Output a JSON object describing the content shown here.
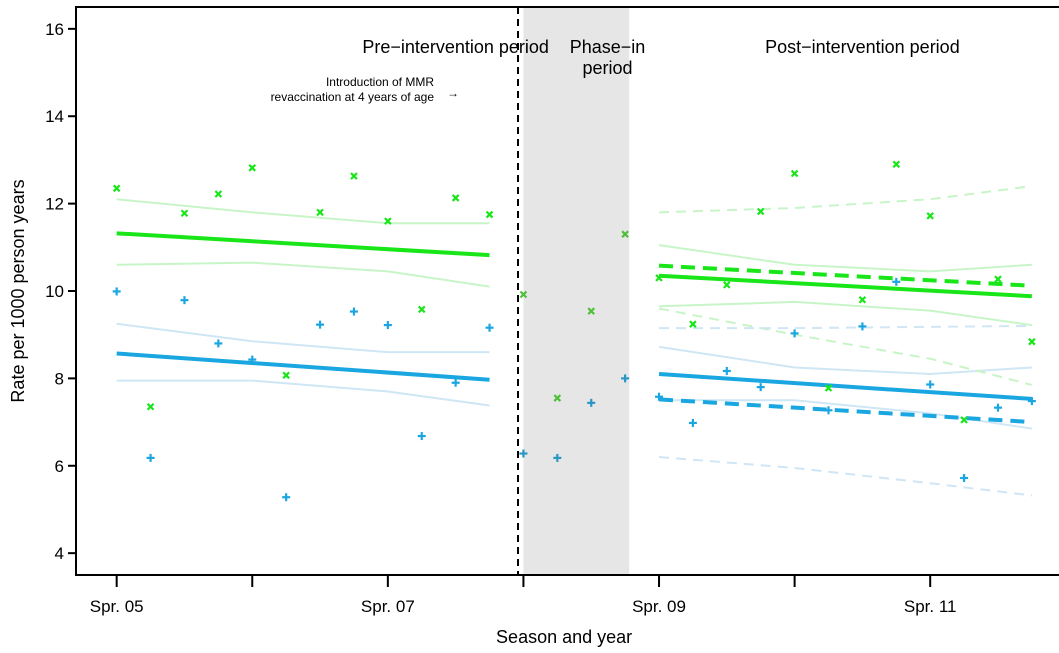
{
  "chart_data": {
    "type": "scatter",
    "xlabel": "Season and year",
    "ylabel": "Rate per 1000 person years",
    "ylim": [
      3.5,
      16.5
    ],
    "xlim": [
      -0.3,
      6.95
    ],
    "yticks": [
      4,
      6,
      8,
      10,
      12,
      14,
      16
    ],
    "xticks_major": [
      {
        "x": 0,
        "label": "Spr. 05"
      },
      {
        "x": 2,
        "label": "Spr. 07"
      },
      {
        "x": 4,
        "label": "Spr. 09"
      },
      {
        "x": 6,
        "label": "Spr. 11"
      }
    ],
    "xticks_minor": [
      1,
      3,
      5
    ],
    "grid": false,
    "periods": [
      {
        "label_lines": [
          "Pre−intervention period"
        ],
        "center": 2.5
      },
      {
        "label_lines": [
          "Phase−in",
          "period"
        ],
        "center": 3.62
      },
      {
        "label_lines": [
          "Post−intervention period"
        ],
        "center": 5.5
      }
    ],
    "phase_in_region": [
      3.0,
      3.78
    ],
    "intervention_line_x": 2.96,
    "annotation": {
      "lines": [
        "Introduction of MMR",
        "revaccination at 4 years of age"
      ],
      "arrow": "→"
    },
    "colors": {
      "green": "#19e619",
      "blue": "#1aa6e0",
      "green_phase": "#4fbf3a",
      "blue_phase": "#2a96c4",
      "green_ci": "#c8f5c8",
      "blue_ci": "#cfe6f5",
      "shade": "#e6e6e6"
    },
    "series": [
      {
        "marker": "x",
        "color_key": "green",
        "points": [
          [
            0.0,
            12.35
          ],
          [
            0.25,
            7.35
          ],
          [
            0.5,
            11.78
          ],
          [
            0.75,
            12.22
          ],
          [
            1.0,
            12.82
          ],
          [
            1.25,
            8.07
          ],
          [
            1.5,
            11.8
          ],
          [
            1.75,
            12.63
          ],
          [
            2.0,
            11.6
          ],
          [
            2.25,
            9.58
          ],
          [
            2.5,
            12.13
          ],
          [
            2.75,
            11.75
          ],
          [
            4.0,
            10.3
          ],
          [
            4.25,
            9.24
          ],
          [
            4.5,
            10.14
          ],
          [
            4.75,
            11.82
          ],
          [
            5.0,
            12.69
          ],
          [
            5.25,
            7.78
          ],
          [
            5.5,
            9.8
          ],
          [
            5.75,
            12.9
          ],
          [
            6.0,
            11.72
          ],
          [
            6.25,
            7.05
          ],
          [
            6.5,
            10.27
          ],
          [
            6.75,
            8.84
          ]
        ]
      },
      {
        "marker": "+",
        "color_key": "blue",
        "points": [
          [
            0.0,
            9.99
          ],
          [
            0.25,
            6.18
          ],
          [
            0.5,
            9.79
          ],
          [
            0.75,
            8.8
          ],
          [
            1.0,
            8.43
          ],
          [
            1.25,
            5.28
          ],
          [
            1.5,
            9.23
          ],
          [
            1.75,
            9.53
          ],
          [
            2.0,
            9.22
          ],
          [
            2.25,
            6.68
          ],
          [
            2.5,
            7.9
          ],
          [
            2.75,
            9.16
          ],
          [
            4.0,
            7.58
          ],
          [
            4.25,
            6.98
          ],
          [
            4.5,
            8.17
          ],
          [
            4.75,
            7.8
          ],
          [
            5.0,
            9.03
          ],
          [
            5.25,
            7.27
          ],
          [
            5.5,
            9.19
          ],
          [
            5.75,
            10.21
          ],
          [
            6.0,
            7.86
          ],
          [
            6.25,
            5.72
          ],
          [
            6.5,
            7.33
          ],
          [
            6.75,
            7.48
          ]
        ]
      },
      {
        "marker": "x",
        "color_key": "green_phase",
        "points": [
          [
            3.0,
            9.92
          ],
          [
            3.25,
            7.55
          ],
          [
            3.5,
            9.54
          ],
          [
            3.75,
            11.3
          ]
        ]
      },
      {
        "marker": "+",
        "color_key": "blue_phase",
        "points": [
          [
            3.0,
            6.28
          ],
          [
            3.25,
            6.18
          ],
          [
            3.5,
            7.44
          ],
          [
            3.75,
            8.0
          ]
        ]
      }
    ],
    "fitted_lines": [
      {
        "color_key": "green",
        "style": "solid",
        "from": [
          0,
          11.32
        ],
        "to": [
          2.75,
          10.82
        ]
      },
      {
        "color_key": "blue",
        "style": "solid",
        "from": [
          0,
          8.57
        ],
        "to": [
          2.75,
          7.97
        ]
      },
      {
        "color_key": "green",
        "style": "solid",
        "from": [
          4,
          10.35
        ],
        "to": [
          6.75,
          9.88
        ]
      },
      {
        "color_key": "green",
        "style": "dashed",
        "from": [
          4,
          10.58
        ],
        "to": [
          6.75,
          10.12
        ]
      },
      {
        "color_key": "blue",
        "style": "solid",
        "from": [
          4,
          8.1
        ],
        "to": [
          6.75,
          7.53
        ]
      },
      {
        "color_key": "blue",
        "style": "dashed",
        "from": [
          4,
          7.52
        ],
        "to": [
          6.75,
          7.0
        ]
      }
    ],
    "confidence_bands": [
      {
        "color_key": "green_ci",
        "style": "solid",
        "points": [
          [
            0,
            12.1
          ],
          [
            1,
            11.8
          ],
          [
            2,
            11.55
          ],
          [
            2.75,
            11.55
          ]
        ]
      },
      {
        "color_key": "green_ci",
        "style": "solid",
        "points": [
          [
            0,
            10.6
          ],
          [
            1,
            10.65
          ],
          [
            2,
            10.45
          ],
          [
            2.75,
            10.1
          ]
        ]
      },
      {
        "color_key": "blue_ci",
        "style": "solid",
        "points": [
          [
            0,
            9.25
          ],
          [
            1,
            8.85
          ],
          [
            2,
            8.6
          ],
          [
            2.75,
            8.6
          ]
        ]
      },
      {
        "color_key": "blue_ci",
        "style": "solid",
        "points": [
          [
            0,
            7.95
          ],
          [
            1,
            7.95
          ],
          [
            2,
            7.7
          ],
          [
            2.75,
            7.38
          ]
        ]
      },
      {
        "color_key": "green_ci",
        "style": "solid",
        "points": [
          [
            4,
            11.05
          ],
          [
            5,
            10.6
          ],
          [
            6,
            10.45
          ],
          [
            6.75,
            10.6
          ]
        ]
      },
      {
        "color_key": "green_ci",
        "style": "solid",
        "points": [
          [
            4,
            9.65
          ],
          [
            5,
            9.75
          ],
          [
            6,
            9.55
          ],
          [
            6.75,
            9.22
          ]
        ]
      },
      {
        "color_key": "blue_ci",
        "style": "solid",
        "points": [
          [
            4,
            8.72
          ],
          [
            5,
            8.25
          ],
          [
            6,
            8.1
          ],
          [
            6.75,
            8.25
          ]
        ]
      },
      {
        "color_key": "blue_ci",
        "style": "solid",
        "points": [
          [
            4,
            7.5
          ],
          [
            5,
            7.5
          ],
          [
            6,
            7.2
          ],
          [
            6.75,
            6.85
          ]
        ]
      },
      {
        "color_key": "green_ci",
        "style": "dashed",
        "points": [
          [
            4,
            11.8
          ],
          [
            5,
            11.9
          ],
          [
            6,
            12.1
          ],
          [
            6.75,
            12.4
          ]
        ]
      },
      {
        "color_key": "green_ci",
        "style": "dashed",
        "points": [
          [
            4,
            9.6
          ],
          [
            5,
            9.0
          ],
          [
            6,
            8.45
          ],
          [
            6.75,
            7.85
          ]
        ]
      },
      {
        "color_key": "blue_ci",
        "style": "dashed",
        "points": [
          [
            4,
            9.15
          ],
          [
            5,
            9.15
          ],
          [
            6,
            9.18
          ],
          [
            6.75,
            9.2
          ]
        ]
      },
      {
        "color_key": "blue_ci",
        "style": "dashed",
        "points": [
          [
            4,
            6.2
          ],
          [
            5,
            5.95
          ],
          [
            6,
            5.6
          ],
          [
            6.75,
            5.32
          ]
        ]
      }
    ]
  }
}
